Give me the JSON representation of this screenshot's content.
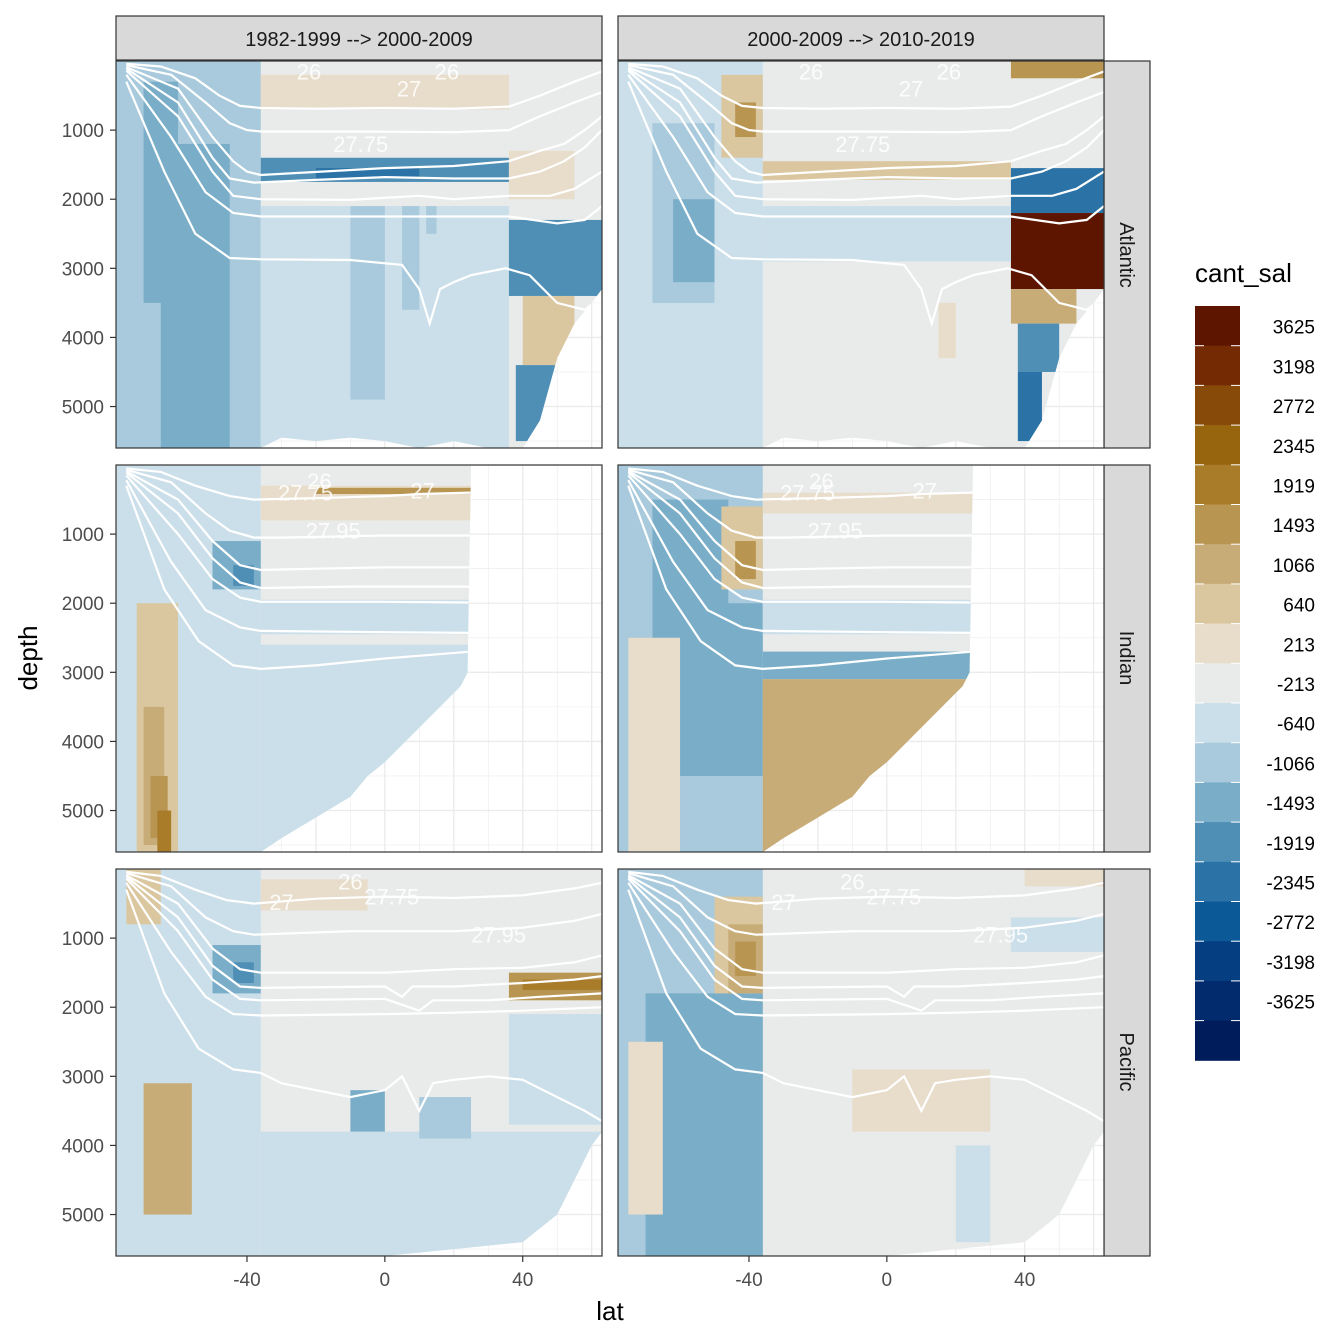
{
  "chart_data": {
    "type": "heatmap",
    "title": "",
    "xlabel": "lat",
    "ylabel": "depth",
    "xlim": [
      -78,
      63
    ],
    "ylim": [
      5600,
      0
    ],
    "y_reversed": true,
    "x_ticks": [
      -40,
      0,
      40
    ],
    "x_tick_labels": [
      "-40",
      "0",
      "40"
    ],
    "y_ticks": [
      1000,
      2000,
      3000,
      4000,
      5000
    ],
    "y_tick_labels": [
      "1000",
      "2000",
      "3000",
      "4000",
      "5000"
    ],
    "facet_columns": [
      "1982-1999 --> 2000-2009",
      "2000-2009 --> 2010-2019"
    ],
    "facet_rows": [
      "Atlantic",
      "Indian",
      "Pacific"
    ],
    "legend": {
      "title": "cant_sal",
      "position": "right",
      "labels": [
        "3625",
        "3198",
        "2772",
        "2345",
        "1919",
        "1493",
        "1066",
        "640",
        "213",
        "-213",
        "-640",
        "-1066",
        "-1493",
        "-1919",
        "-2345",
        "-2772",
        "-3198",
        "-3625"
      ],
      "colors": [
        "#5e1500",
        "#742b04",
        "#874a08",
        "#98650f",
        "#a97c2a",
        "#b99552",
        "#c8ac78",
        "#dbc79f",
        "#e8dcca",
        "#e9ebea",
        "#cbdfea",
        "#a8cadc",
        "#7aaec8",
        "#4f8fb6",
        "#2b73a6",
        "#0c5998",
        "#053f81",
        "#022b6e",
        "#011c5b"
      ]
    },
    "isopycnal_labels": [
      "26",
      "27",
      "27.75",
      "27.95"
    ],
    "panels": [
      {
        "row": "Atlantic",
        "col": "1982-1999 --> 2000-2009",
        "labels": [
          {
            "t": "26",
            "x": -22,
            "y": 150
          },
          {
            "t": "26",
            "x": 18,
            "y": 150
          },
          {
            "t": "27",
            "x": 7,
            "y": 400
          },
          {
            "t": "27.75",
            "x": -7,
            "y": 1200
          }
        ]
      },
      {
        "row": "Atlantic",
        "col": "2000-2009 --> 2010-2019",
        "labels": [
          {
            "t": "26",
            "x": -22,
            "y": 150
          },
          {
            "t": "26",
            "x": 18,
            "y": 150
          },
          {
            "t": "27",
            "x": 7,
            "y": 400
          },
          {
            "t": "27.75",
            "x": -7,
            "y": 1200
          }
        ]
      },
      {
        "row": "Indian",
        "col": "1982-1999 --> 2000-2009",
        "labels": [
          {
            "t": "26",
            "x": -19,
            "y": 230
          },
          {
            "t": "27",
            "x": 11,
            "y": 370
          },
          {
            "t": "27.75",
            "x": -23,
            "y": 400
          },
          {
            "t": "27.95",
            "x": -15,
            "y": 950
          }
        ]
      },
      {
        "row": "Indian",
        "col": "2000-2009 --> 2010-2019",
        "labels": [
          {
            "t": "26",
            "x": -19,
            "y": 230
          },
          {
            "t": "27",
            "x": 11,
            "y": 370
          },
          {
            "t": "27.75",
            "x": -23,
            "y": 400
          },
          {
            "t": "27.95",
            "x": -15,
            "y": 950
          }
        ]
      },
      {
        "row": "Pacific",
        "col": "1982-1999 --> 2000-2009",
        "labels": [
          {
            "t": "26",
            "x": -10,
            "y": 180
          },
          {
            "t": "27",
            "x": -30,
            "y": 480
          },
          {
            "t": "27.75",
            "x": 2,
            "y": 400
          },
          {
            "t": "27.95",
            "x": 33,
            "y": 950
          }
        ]
      },
      {
        "row": "Pacific",
        "col": "2000-2009 --> 2010-2019",
        "labels": [
          {
            "t": "26",
            "x": -10,
            "y": 180
          },
          {
            "t": "27",
            "x": -30,
            "y": 480
          },
          {
            "t": "27.75",
            "x": 2,
            "y": 400
          },
          {
            "t": "27.95",
            "x": 33,
            "y": 950
          }
        ]
      }
    ]
  }
}
